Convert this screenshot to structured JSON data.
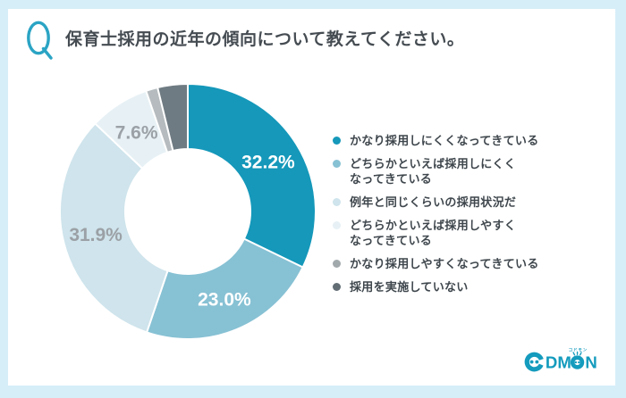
{
  "colors": {
    "page_background": "#d6eef8",
    "card_background": "#ffffff",
    "accent": "#2ba4c4",
    "logo": "#149bbd",
    "title_text": "#454c52",
    "legend_text": "#3f474d",
    "muted_label": "#9ba1a6"
  },
  "header": {
    "q_mark": "Q",
    "title": "保育士採用の近年の傾向について教えてください。"
  },
  "chart_data": {
    "type": "pie",
    "subtype": "donut",
    "title": "保育士採用の近年の傾向について教えてください。",
    "unit": "%",
    "start_angle_deg": 0,
    "direction": "clockwise",
    "hole_ratio": 0.49,
    "legend_position": "right",
    "slices": [
      {
        "label": "かなり採用しにくくなってきている",
        "value": 32.2,
        "display_label": "32.2%",
        "color": "#1598ba",
        "label_color": "#ffffff"
      },
      {
        "label": "どちらかといえば採用しにくくなってきている",
        "value": 23.0,
        "display_label": "23.0%",
        "color": "#87c1d4",
        "label_color": "#ffffff"
      },
      {
        "label": "例年と同じくらいの採用状況だ",
        "value": 31.9,
        "display_label": "31.9%",
        "color": "#cfe4ec",
        "label_color": "#9ba1a6"
      },
      {
        "label": "どちらかといえば採用しやすくなってきている",
        "value": 7.6,
        "display_label": "7.6%",
        "color": "#e7f1f5",
        "label_color": "#9ba1a6"
      },
      {
        "label": "かなり採用しやすくなってきている",
        "value": 1.5,
        "display_label": null,
        "color": "#b5bbbe",
        "label_color": null
      },
      {
        "label": "採用を実施していない",
        "value": 3.8,
        "display_label": null,
        "color": "#6f7b82",
        "label_color": null
      }
    ]
  },
  "legend": {
    "items": [
      {
        "label": "かなり採用しにくくなってきている",
        "color": "#1598ba"
      },
      {
        "label": "どちらかといえば採用しにくく\nなってきている",
        "color": "#87c1d4"
      },
      {
        "label": "例年と同じくらいの採用状況だ",
        "color": "#cfe4ec"
      },
      {
        "label": "どちらかといえば採用しやすく\nなってきている",
        "color": "#e7f1f5"
      },
      {
        "label": "かなり採用しやすくなってきている",
        "color": "#a2a9ad"
      },
      {
        "label": "採用を実施していない",
        "color": "#626d74"
      }
    ]
  },
  "logo": {
    "brand": "CODMON",
    "ruby": "コドモン",
    "letters_dm": "DM",
    "letter_n": "N"
  }
}
